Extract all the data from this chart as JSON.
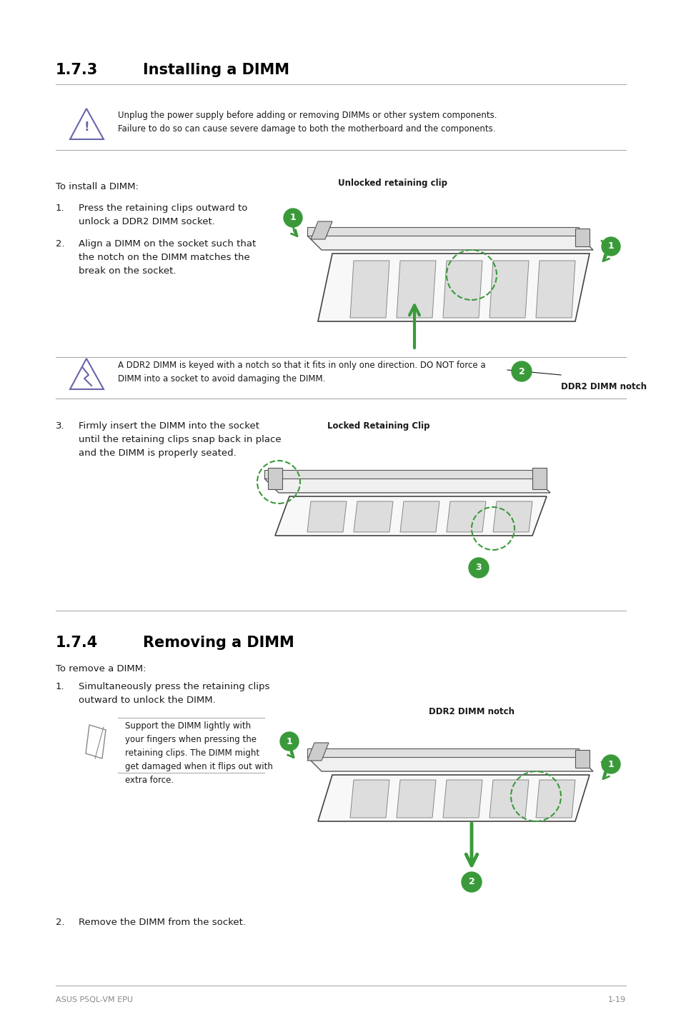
{
  "bg_color": "#ffffff",
  "section1_title": "1.7.3",
  "section1_name": "Installing a DIMM",
  "section2_title": "1.7.4",
  "section2_name": "Removing a DIMM",
  "caution1_text": "Unplug the power supply before adding or removing DIMMs or other system components.\nFailure to do so can cause severe damage to both the motherboard and the components.",
  "install_intro": "To install a DIMM:",
  "install_step1": "Press the retaining clips outward to\nunlock a DDR2 DIMM socket.",
  "install_step2": "Align a DIMM on the socket such that\nthe notch on the DIMM matches the\nbreak on the socket.",
  "caution2_text": "A DDR2 DIMM is keyed with a notch so that it fits in only one direction. DO NOT force a\nDIMM into a socket to avoid damaging the DIMM.",
  "install_step3": "Firmly insert the DIMM into the socket\nuntil the retaining clips snap back in place\nand the DIMM is properly seated.",
  "locked_clip_label": "Locked Retaining Clip",
  "unlocked_clip_label": "Unlocked retaining clip",
  "ddr2_notch_label": "DDR2 DIMM notch",
  "remove_intro": "To remove a DIMM:",
  "remove_step1": "Simultaneously press the retaining clips\noutward to unlock the DIMM.",
  "note_text": "Support the DIMM lightly with\nyour fingers when pressing the\nretaining clips. The DIMM might\nget damaged when it flips out with\nextra force.",
  "remove_step2": "Remove the DIMM from the socket.",
  "footer_left": "ASUS P5QL-VM EPU",
  "footer_right": "1-19",
  "green_color": "#3a9a3a",
  "text_color": "#1a1a1a",
  "gray_color": "#888888",
  "title_color": "#000000",
  "purple_color": "#6666aa",
  "line_color": "#aaaaaa"
}
